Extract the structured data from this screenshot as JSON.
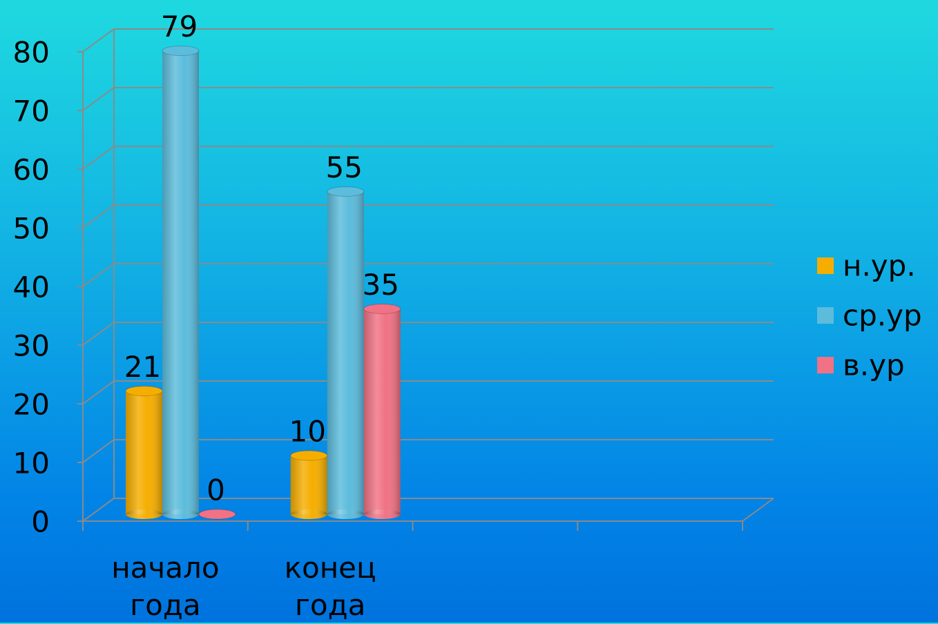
{
  "chart_data": {
    "type": "bar3d",
    "categories": [
      "начало года",
      "конец года",
      null,
      null
    ],
    "series": [
      {
        "name": "н.ур.",
        "color": "#f5ae00",
        "values": [
          21,
          10,
          null,
          null
        ]
      },
      {
        "name": "ср.ур",
        "color": "#5cbcdc",
        "values": [
          79,
          55,
          null,
          null
        ]
      },
      {
        "name": "в.ур",
        "color": "#f07284",
        "values": [
          0,
          35,
          null,
          null
        ]
      }
    ],
    "ylim": [
      0,
      80
    ],
    "yticks": [
      0,
      10,
      20,
      30,
      40,
      50,
      60,
      70,
      80
    ],
    "grid": true,
    "legend": "right"
  }
}
